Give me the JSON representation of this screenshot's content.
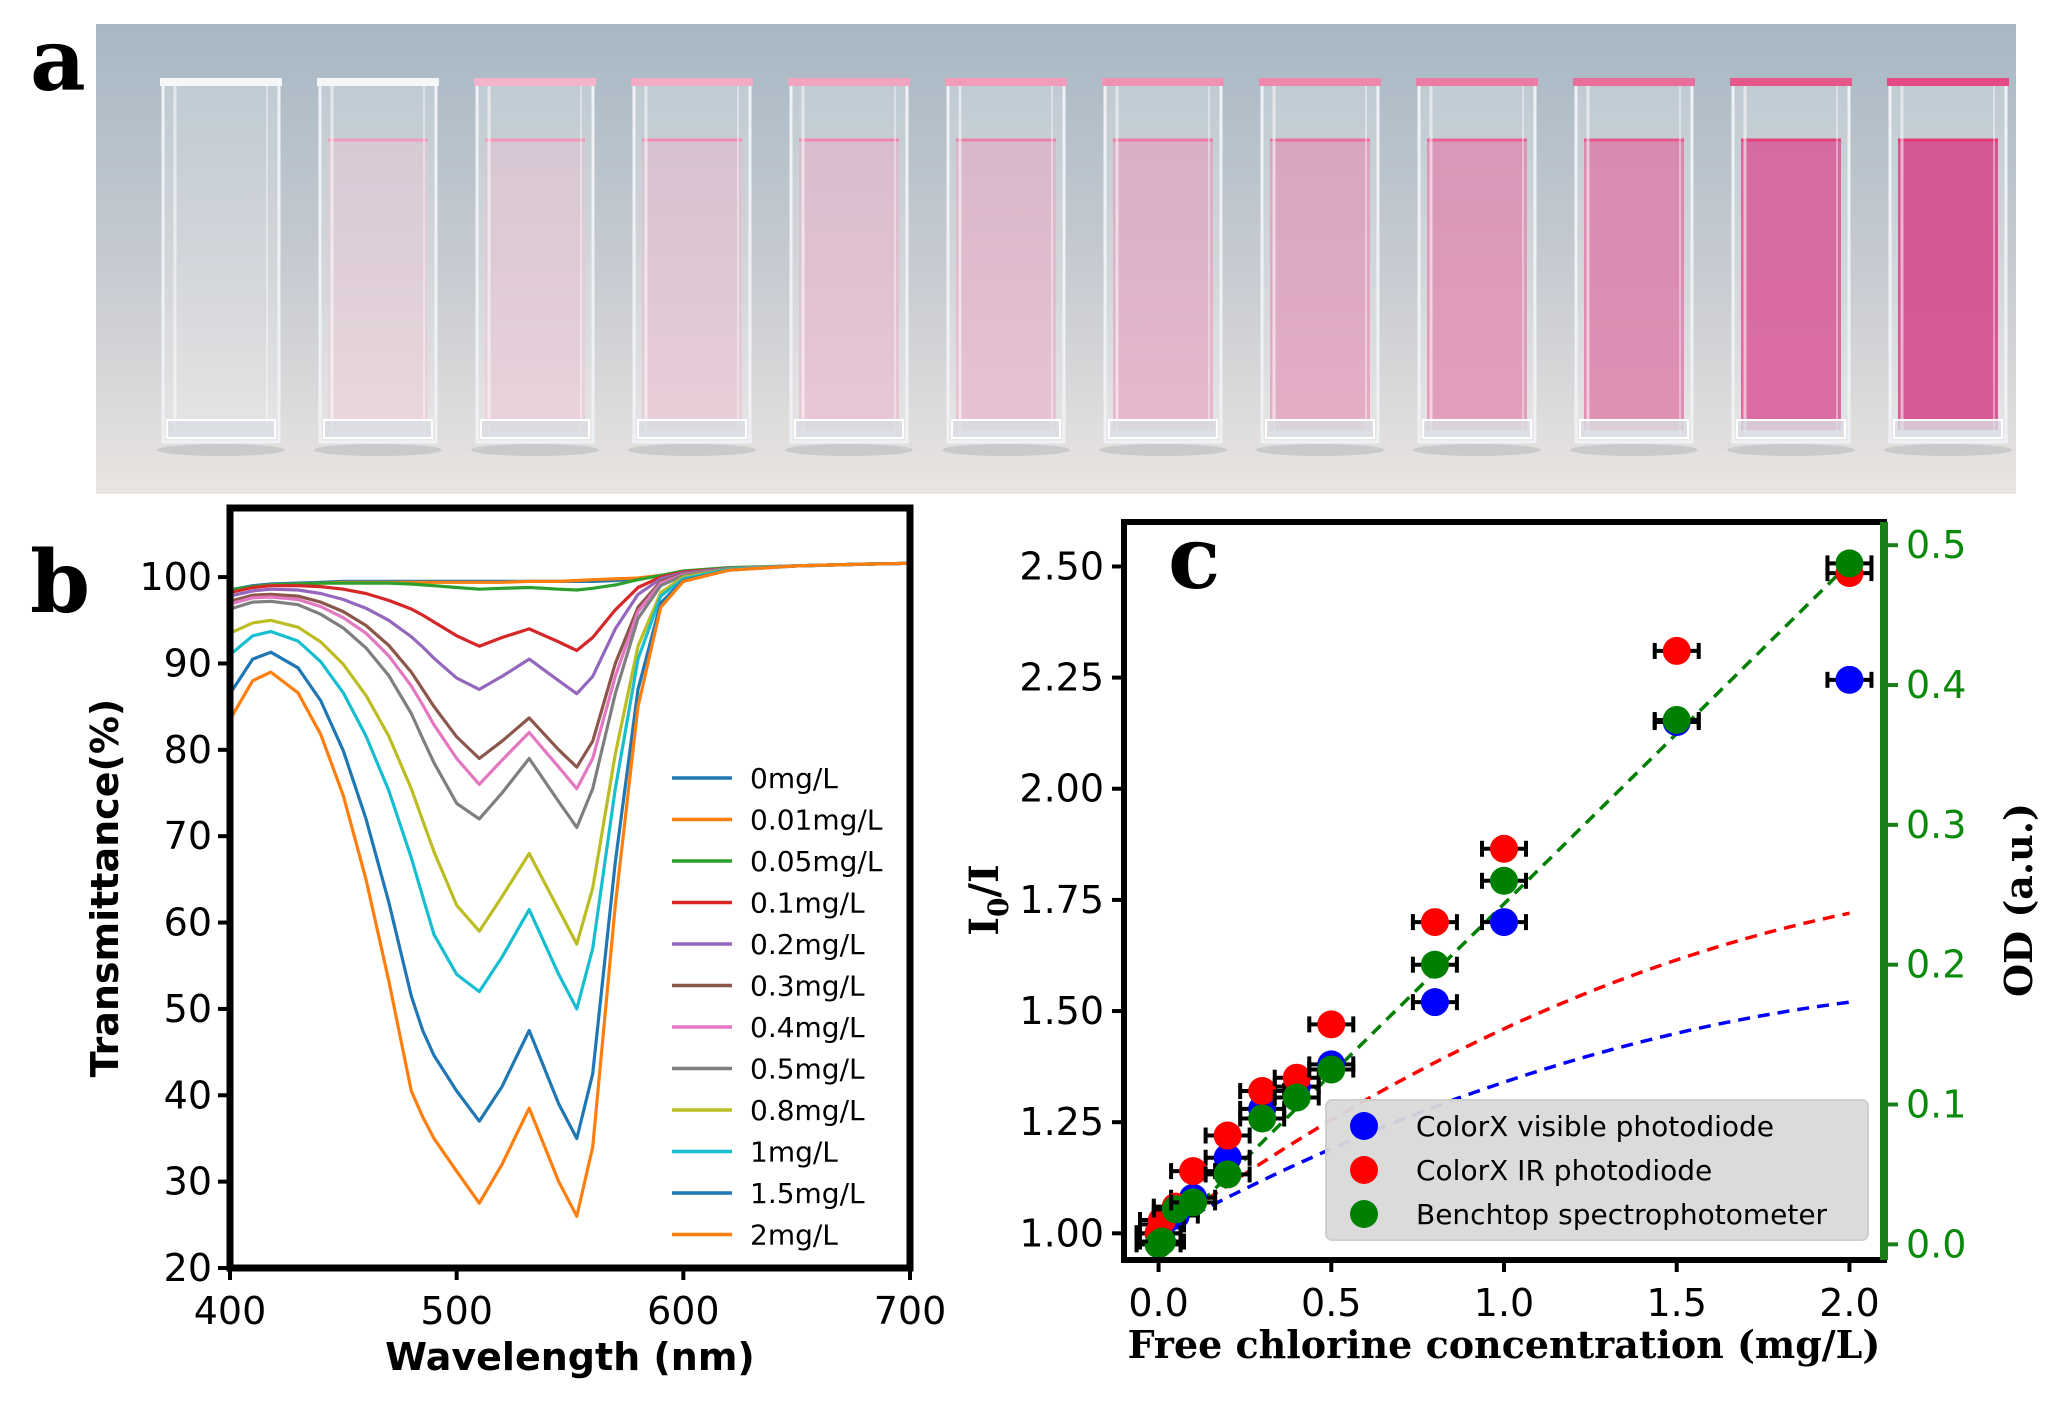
{
  "panels": {
    "a": {
      "label": "a"
    },
    "b": {
      "label": "b"
    },
    "c": {
      "label": "c"
    }
  },
  "colors": {
    "bg_top": "#a9b9c4",
    "bg_bottom": "#e8e6e4",
    "pink_light": "#f3c9d9",
    "pink_dark": "#d23f86",
    "legend_bg": "#d9d9d9",
    "right_axis": "#1a7f1a"
  },
  "photo": {
    "description_icon": "cuvette-icon",
    "cuvette_count": 12,
    "cuvette_tints": [
      0.0,
      0.05,
      0.1,
      0.16,
      0.22,
      0.28,
      0.36,
      0.44,
      0.55,
      0.64,
      0.82,
      0.92
    ]
  },
  "chart_data": [
    {
      "type": "line",
      "panel": "b",
      "title": "",
      "xlabel": "Wavelength (nm)",
      "ylabel": "Transmittance(%)",
      "xlim": [
        400,
        700
      ],
      "ylim": [
        20,
        108
      ],
      "xticks": [
        400,
        500,
        600,
        700
      ],
      "yticks": [
        20,
        30,
        40,
        50,
        60,
        70,
        80,
        90,
        100
      ],
      "legend_position": "center-right",
      "x": [
        400,
        410,
        418,
        430,
        440,
        450,
        460,
        470,
        480,
        485,
        490,
        500,
        510,
        520,
        532,
        545,
        553,
        560,
        570,
        580,
        590,
        600,
        620,
        650,
        680,
        700
      ],
      "series": [
        {
          "name": "0mg/L",
          "color": "#1f77b4",
          "values": [
            98.5,
            99.0,
            99.2,
            99.3,
            99.4,
            99.5,
            99.5,
            99.5,
            99.5,
            99.5,
            99.5,
            99.5,
            99.5,
            99.5,
            99.5,
            99.5,
            99.5,
            99.5,
            99.6,
            99.8,
            100.2,
            100.6,
            101.0,
            101.3,
            101.5,
            101.6
          ]
        },
        {
          "name": "0.01mg/L",
          "color": "#ff7f0e",
          "values": [
            98.4,
            98.9,
            99.1,
            99.2,
            99.3,
            99.4,
            99.4,
            99.4,
            99.4,
            99.4,
            99.4,
            99.4,
            99.4,
            99.4,
            99.5,
            99.5,
            99.6,
            99.7,
            99.8,
            99.9,
            100.2,
            100.6,
            101.0,
            101.3,
            101.5,
            101.6
          ]
        },
        {
          "name": "0.05mg/L",
          "color": "#2ca02c",
          "values": [
            98.5,
            98.9,
            99.1,
            99.2,
            99.3,
            99.3,
            99.3,
            99.3,
            99.2,
            99.1,
            99.0,
            98.8,
            98.6,
            98.7,
            98.8,
            98.6,
            98.5,
            98.7,
            99.1,
            99.7,
            100.2,
            100.7,
            101.1,
            101.3,
            101.5,
            101.6
          ]
        },
        {
          "name": "0.1mg/L",
          "color": "#d62728",
          "values": [
            98.2,
            98.8,
            99.0,
            99.0,
            98.9,
            98.6,
            98.1,
            97.3,
            96.3,
            95.6,
            94.8,
            93.2,
            92.0,
            93.0,
            94.0,
            92.5,
            91.5,
            93.0,
            96.2,
            98.8,
            100.0,
            100.6,
            101.0,
            101.3,
            101.5,
            101.6
          ]
        },
        {
          "name": "0.2mg/L",
          "color": "#9467bd",
          "values": [
            97.8,
            98.4,
            98.6,
            98.5,
            98.1,
            97.4,
            96.4,
            95.0,
            93.1,
            91.9,
            90.6,
            88.3,
            87.0,
            88.5,
            90.5,
            88.0,
            86.5,
            88.5,
            94.0,
            98.0,
            99.8,
            100.5,
            101.0,
            101.3,
            101.5,
            101.6
          ]
        },
        {
          "name": "0.3mg/L",
          "color": "#8c564b",
          "values": [
            97.2,
            97.9,
            98.0,
            97.8,
            97.1,
            96.0,
            94.4,
            92.1,
            89.0,
            87.0,
            85.0,
            81.5,
            79.0,
            81.0,
            83.7,
            80.0,
            78.0,
            81.0,
            90.0,
            96.5,
            99.5,
            100.4,
            101.0,
            101.3,
            101.5,
            101.6
          ]
        },
        {
          "name": "0.4mg/L",
          "color": "#e377c2",
          "values": [
            96.9,
            97.6,
            97.7,
            97.4,
            96.6,
            95.3,
            93.5,
            90.9,
            87.4,
            85.2,
            82.9,
            79.0,
            76.0,
            78.8,
            82.0,
            78.0,
            75.5,
            79.0,
            88.5,
            96.0,
            99.3,
            100.3,
            101.0,
            101.3,
            101.5,
            101.6
          ]
        },
        {
          "name": "0.5mg/L",
          "color": "#7f7f7f",
          "values": [
            96.3,
            97.1,
            97.2,
            96.8,
            95.7,
            94.1,
            91.8,
            88.6,
            84.2,
            81.3,
            78.5,
            73.8,
            72.0,
            75.0,
            79.0,
            74.0,
            71.0,
            75.5,
            86.5,
            95.2,
            99.0,
            100.2,
            101.0,
            101.3,
            101.5,
            101.6
          ]
        },
        {
          "name": "0.8mg/L",
          "color": "#bcbd22",
          "values": [
            93.5,
            94.7,
            95.0,
            94.2,
            92.5,
            89.9,
            86.3,
            81.6,
            75.5,
            71.8,
            68.2,
            62.0,
            59.0,
            63.0,
            68.0,
            61.5,
            57.5,
            64.0,
            79.5,
            92.0,
            98.2,
            100.0,
            100.9,
            101.3,
            101.5,
            101.6
          ]
        },
        {
          "name": "1mg/L",
          "color": "#17becf",
          "values": [
            91.0,
            93.2,
            93.7,
            92.6,
            90.2,
            86.6,
            81.6,
            75.3,
            67.5,
            63.0,
            58.6,
            54.0,
            52.0,
            56.0,
            61.5,
            54.0,
            50.0,
            57.0,
            75.5,
            90.5,
            97.8,
            99.8,
            100.9,
            101.3,
            101.5,
            101.6
          ]
        },
        {
          "name": "1.5mg/L",
          "color": "#1f77b4",
          "values": [
            86.5,
            90.5,
            91.3,
            89.5,
            85.7,
            79.9,
            72.0,
            62.4,
            51.5,
            47.5,
            44.6,
            40.5,
            37.0,
            41.0,
            47.5,
            39.0,
            35.0,
            42.5,
            67.0,
            87.0,
            97.0,
            99.6,
            100.8,
            101.3,
            101.5,
            101.6
          ]
        },
        {
          "name": "2mg/L",
          "color": "#ff7f0e",
          "values": [
            83.5,
            88.0,
            89.0,
            86.6,
            81.8,
            74.7,
            65.0,
            53.3,
            40.5,
            37.5,
            35.0,
            31.2,
            27.5,
            32.0,
            38.5,
            30.0,
            26.0,
            34.0,
            62.0,
            85.0,
            96.5,
            99.5,
            100.8,
            101.3,
            101.5,
            101.6
          ]
        }
      ]
    },
    {
      "type": "scatter",
      "panel": "c",
      "title": "",
      "xlabel": "Free chlorine concentration (mg/L)",
      "ylabel": "I₀/I",
      "ylabel_base": "I",
      "ylabel_sub": "0",
      "ylabel_rest": "/I",
      "y2label": "OD (a.u.)",
      "xlim": [
        -0.1,
        2.1
      ],
      "ylim": [
        0.94,
        2.6
      ],
      "y2lim": [
        -0.0112,
        0.5166
      ],
      "xticks": [
        0.0,
        0.5,
        1.0,
        1.5,
        2.0
      ],
      "xtick_labels": [
        "0.0",
        "0.5",
        "1.0",
        "1.5",
        "2.0"
      ],
      "yticks": [
        1.0,
        1.25,
        1.5,
        1.75,
        2.0,
        2.25,
        2.5
      ],
      "ytick_labels": [
        "1.00",
        "1.25",
        "1.50",
        "1.75",
        "2.00",
        "2.25",
        "2.50"
      ],
      "y2ticks": [
        0.0,
        0.1,
        0.2,
        0.3,
        0.4,
        0.5
      ],
      "y2tick_labels": [
        "0.0",
        "0.1",
        "0.2",
        "0.3",
        "0.4",
        "0.5"
      ],
      "legend_position": "bottom-right",
      "x": [
        0,
        0.01,
        0.05,
        0.1,
        0.2,
        0.3,
        0.4,
        0.5,
        0.8,
        1.0,
        1.5,
        2.0
      ],
      "series": [
        {
          "name": "ColorX visible photodiode",
          "color": "#0000ff",
          "axis": "left",
          "values": [
            1.0,
            1.02,
            1.04,
            1.08,
            1.17,
            1.28,
            1.33,
            1.38,
            1.52,
            1.7,
            2.15,
            2.245
          ],
          "fit": [
            1.0,
            0.42,
            -0.08
          ]
        },
        {
          "name": "ColorX IR photodiode",
          "color": "#ff0000",
          "axis": "left",
          "values": [
            1.0,
            1.03,
            1.06,
            1.14,
            1.22,
            1.32,
            1.35,
            1.47,
            1.7,
            1.865,
            2.31,
            2.485
          ],
          "fit": [
            1.0,
            0.56,
            -0.1
          ]
        },
        {
          "name": "Benchtop spectrophotometer",
          "color": "#008000",
          "axis": "right",
          "values": [
            0.0,
            0.002,
            0.025,
            0.03,
            0.05,
            0.09,
            0.105,
            0.125,
            0.2,
            0.26,
            0.375,
            0.487
          ],
          "fit": [
            0.0,
            0.2435,
            0.0
          ]
        }
      ]
    }
  ]
}
